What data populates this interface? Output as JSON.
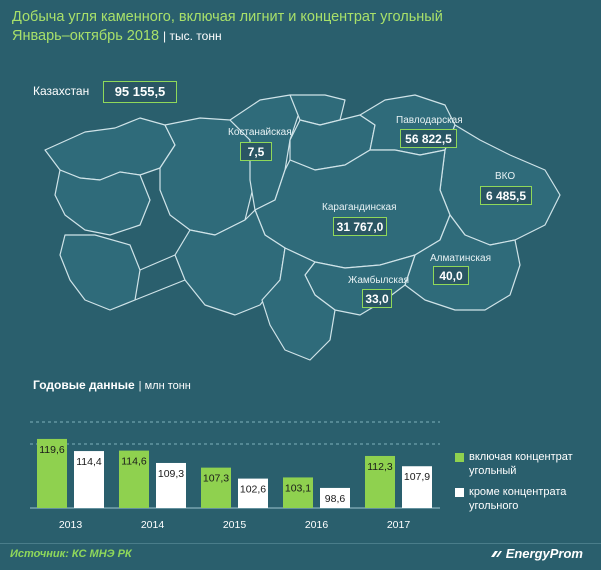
{
  "header": {
    "title_line1": "Добыча угля каменного, включая лигнит и концентрат угольный",
    "title_line2": "Январь–октябрь 2018",
    "unit": "| тыс. тонн"
  },
  "kazakhstan": {
    "name": "Казахстан",
    "value": "95 155,5"
  },
  "regions": [
    {
      "name": "Костанайская",
      "value": "7,5"
    },
    {
      "name": "Павлодарская",
      "value": "56 822,5"
    },
    {
      "name": "ВКО",
      "value": "6 485,5"
    },
    {
      "name": "Карагандинская",
      "value": "31 767,0"
    },
    {
      "name": "Алматинская",
      "value": "40,0"
    },
    {
      "name": "Жамбылская",
      "value": "33,0"
    }
  ],
  "annual": {
    "title": "Годовые данные",
    "unit": "| млн тонн"
  },
  "chart_data": {
    "type": "bar",
    "categories": [
      "2013",
      "2014",
      "2015",
      "2016",
      "2017"
    ],
    "series": [
      {
        "name": "включая концентрат угольный",
        "color": "#8fd14f",
        "values": [
          119.6,
          114.6,
          107.3,
          103.1,
          112.3
        ],
        "labels": [
          "119,6",
          "114,6",
          "107,3",
          "103,1",
          "112,3"
        ]
      },
      {
        "name": "кроме концентрата угольного",
        "color": "#ffffff",
        "values": [
          114.4,
          109.3,
          102.6,
          98.6,
          107.9
        ],
        "labels": [
          "114,4",
          "109,3",
          "102,6",
          "98,6",
          "107,9"
        ]
      }
    ],
    "legend_position": "right"
  },
  "footer": {
    "source": "Источник: КС МНЭ РК",
    "brand": "EnergyProm"
  }
}
